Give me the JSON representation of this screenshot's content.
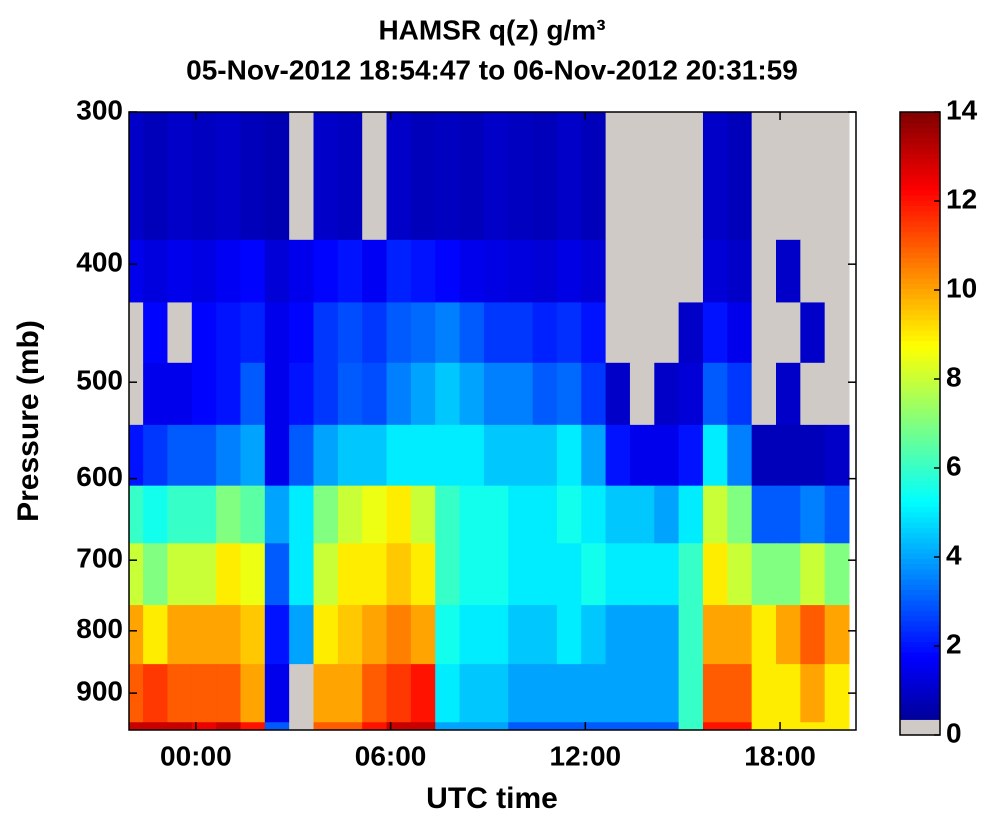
{
  "chart_data": {
    "type": "heatmap",
    "title": "HAMSR q(z) g/m³",
    "subtitle": "05-Nov-2012 18:54:47 to 06-Nov-2012 20:31:59",
    "xlabel": "UTC time",
    "ylabel": "Pressure (mb)",
    "x": [
      -2,
      -1.25,
      -0.5,
      0.25,
      1,
      1.75,
      2.5,
      3.25,
      4,
      4.75,
      5.5,
      6.25,
      7,
      7.75,
      8.5,
      9.25,
      10,
      10.75,
      11.5,
      12.25,
      13,
      13.75,
      14.5,
      15.25,
      16,
      16.75,
      17.5,
      18.25,
      19,
      19.75
    ],
    "xlim": [
      -2.06,
      20.34
    ],
    "xticks": [
      {
        "value": 0,
        "label": "00:00"
      },
      {
        "value": 6,
        "label": "06:00"
      },
      {
        "value": 12,
        "label": "12:00"
      },
      {
        "value": 18,
        "label": "18:00"
      }
    ],
    "y_edges": [
      300,
      382,
      430,
      482,
      542,
      608,
      678,
      762,
      852,
      951,
      965
    ],
    "ylim": [
      300,
      965
    ],
    "y_reversed": true,
    "y_log": true,
    "yticks": [
      300,
      400,
      500,
      600,
      700,
      800,
      900
    ],
    "z": [
      [
        1,
        0.8,
        1,
        0.9,
        1,
        0.8,
        0.7,
        0,
        1,
        0.9,
        0,
        1,
        0.8,
        0.9,
        0.8,
        1,
        0.9,
        0.8,
        1,
        0.8,
        0,
        0,
        0,
        0,
        1,
        0.8,
        0,
        0,
        0,
        0
      ],
      [
        1.5,
        1.3,
        1.5,
        1.4,
        1.6,
        1.8,
        1.2,
        1.5,
        1.8,
        2,
        1.6,
        2.2,
        2,
        1.8,
        1.5,
        1.4,
        1.3,
        1.2,
        1.4,
        1.2,
        0,
        0,
        0,
        0,
        1.2,
        1,
        0,
        1,
        0,
        0
      ],
      [
        0,
        1.8,
        0,
        1.8,
        2,
        2.2,
        1.5,
        1.8,
        2.5,
        2.8,
        2.5,
        3,
        3.2,
        3.5,
        3,
        2.5,
        2.5,
        2.2,
        2.4,
        2,
        0,
        0,
        0,
        1,
        2,
        1.5,
        0,
        0,
        1,
        0
      ],
      [
        0,
        1.5,
        1.5,
        1.8,
        2,
        3,
        1.5,
        2,
        2.5,
        3,
        2.8,
        3.5,
        4,
        4.5,
        4,
        3.5,
        3.5,
        3,
        3.2,
        2.5,
        1,
        0,
        1,
        1.2,
        3,
        2.5,
        0,
        1,
        0,
        0
      ],
      [
        2,
        2.5,
        3,
        3,
        3.5,
        4,
        1.5,
        3,
        4,
        4.5,
        4.5,
        5,
        5,
        5,
        5,
        4.5,
        4.5,
        4.5,
        5,
        4,
        2,
        1.5,
        1.5,
        2,
        5,
        3.5,
        0.8,
        0.8,
        0.8,
        1
      ],
      [
        6,
        5.5,
        6,
        6,
        7,
        6.5,
        4,
        5,
        7,
        8,
        8.5,
        9,
        8,
        6,
        5.5,
        5.5,
        5,
        5,
        5.5,
        5,
        4.5,
        4.5,
        4,
        5,
        8,
        7,
        3,
        3,
        3.5,
        3
      ],
      [
        8,
        7,
        8,
        8,
        9,
        8.5,
        3,
        5,
        8,
        9,
        9,
        9.5,
        9,
        6,
        5.5,
        5.5,
        5,
        5,
        5,
        5.5,
        5,
        5,
        5,
        6,
        9,
        8,
        7,
        7,
        8,
        7
      ],
      [
        10,
        9,
        10,
        10,
        10,
        9.5,
        2,
        4,
        9,
        9.5,
        10,
        10.5,
        10,
        5.5,
        5,
        5,
        4.5,
        4.5,
        5,
        4.5,
        4,
        4,
        4,
        6,
        10,
        10,
        9,
        10,
        11,
        10
      ],
      [
        11,
        11.5,
        11,
        11,
        11,
        10,
        1.5,
        0,
        10,
        10,
        11,
        11.5,
        12,
        5,
        4.5,
        4.5,
        4,
        4,
        4,
        4,
        4,
        4,
        4,
        6,
        11,
        11,
        9,
        9,
        10,
        9
      ],
      [
        13,
        13,
        13,
        12.5,
        13,
        12,
        3,
        0,
        11,
        11,
        12,
        13,
        13,
        4,
        4,
        4,
        3,
        3,
        3,
        3,
        3,
        3,
        3,
        6,
        12,
        12,
        9,
        9,
        9,
        9
      ]
    ],
    "colormap": "jet",
    "zero_color": "#cfcac6",
    "clim": [
      0,
      14
    ],
    "cticks": [
      0,
      2,
      4,
      6,
      8,
      10,
      12,
      14
    ]
  }
}
